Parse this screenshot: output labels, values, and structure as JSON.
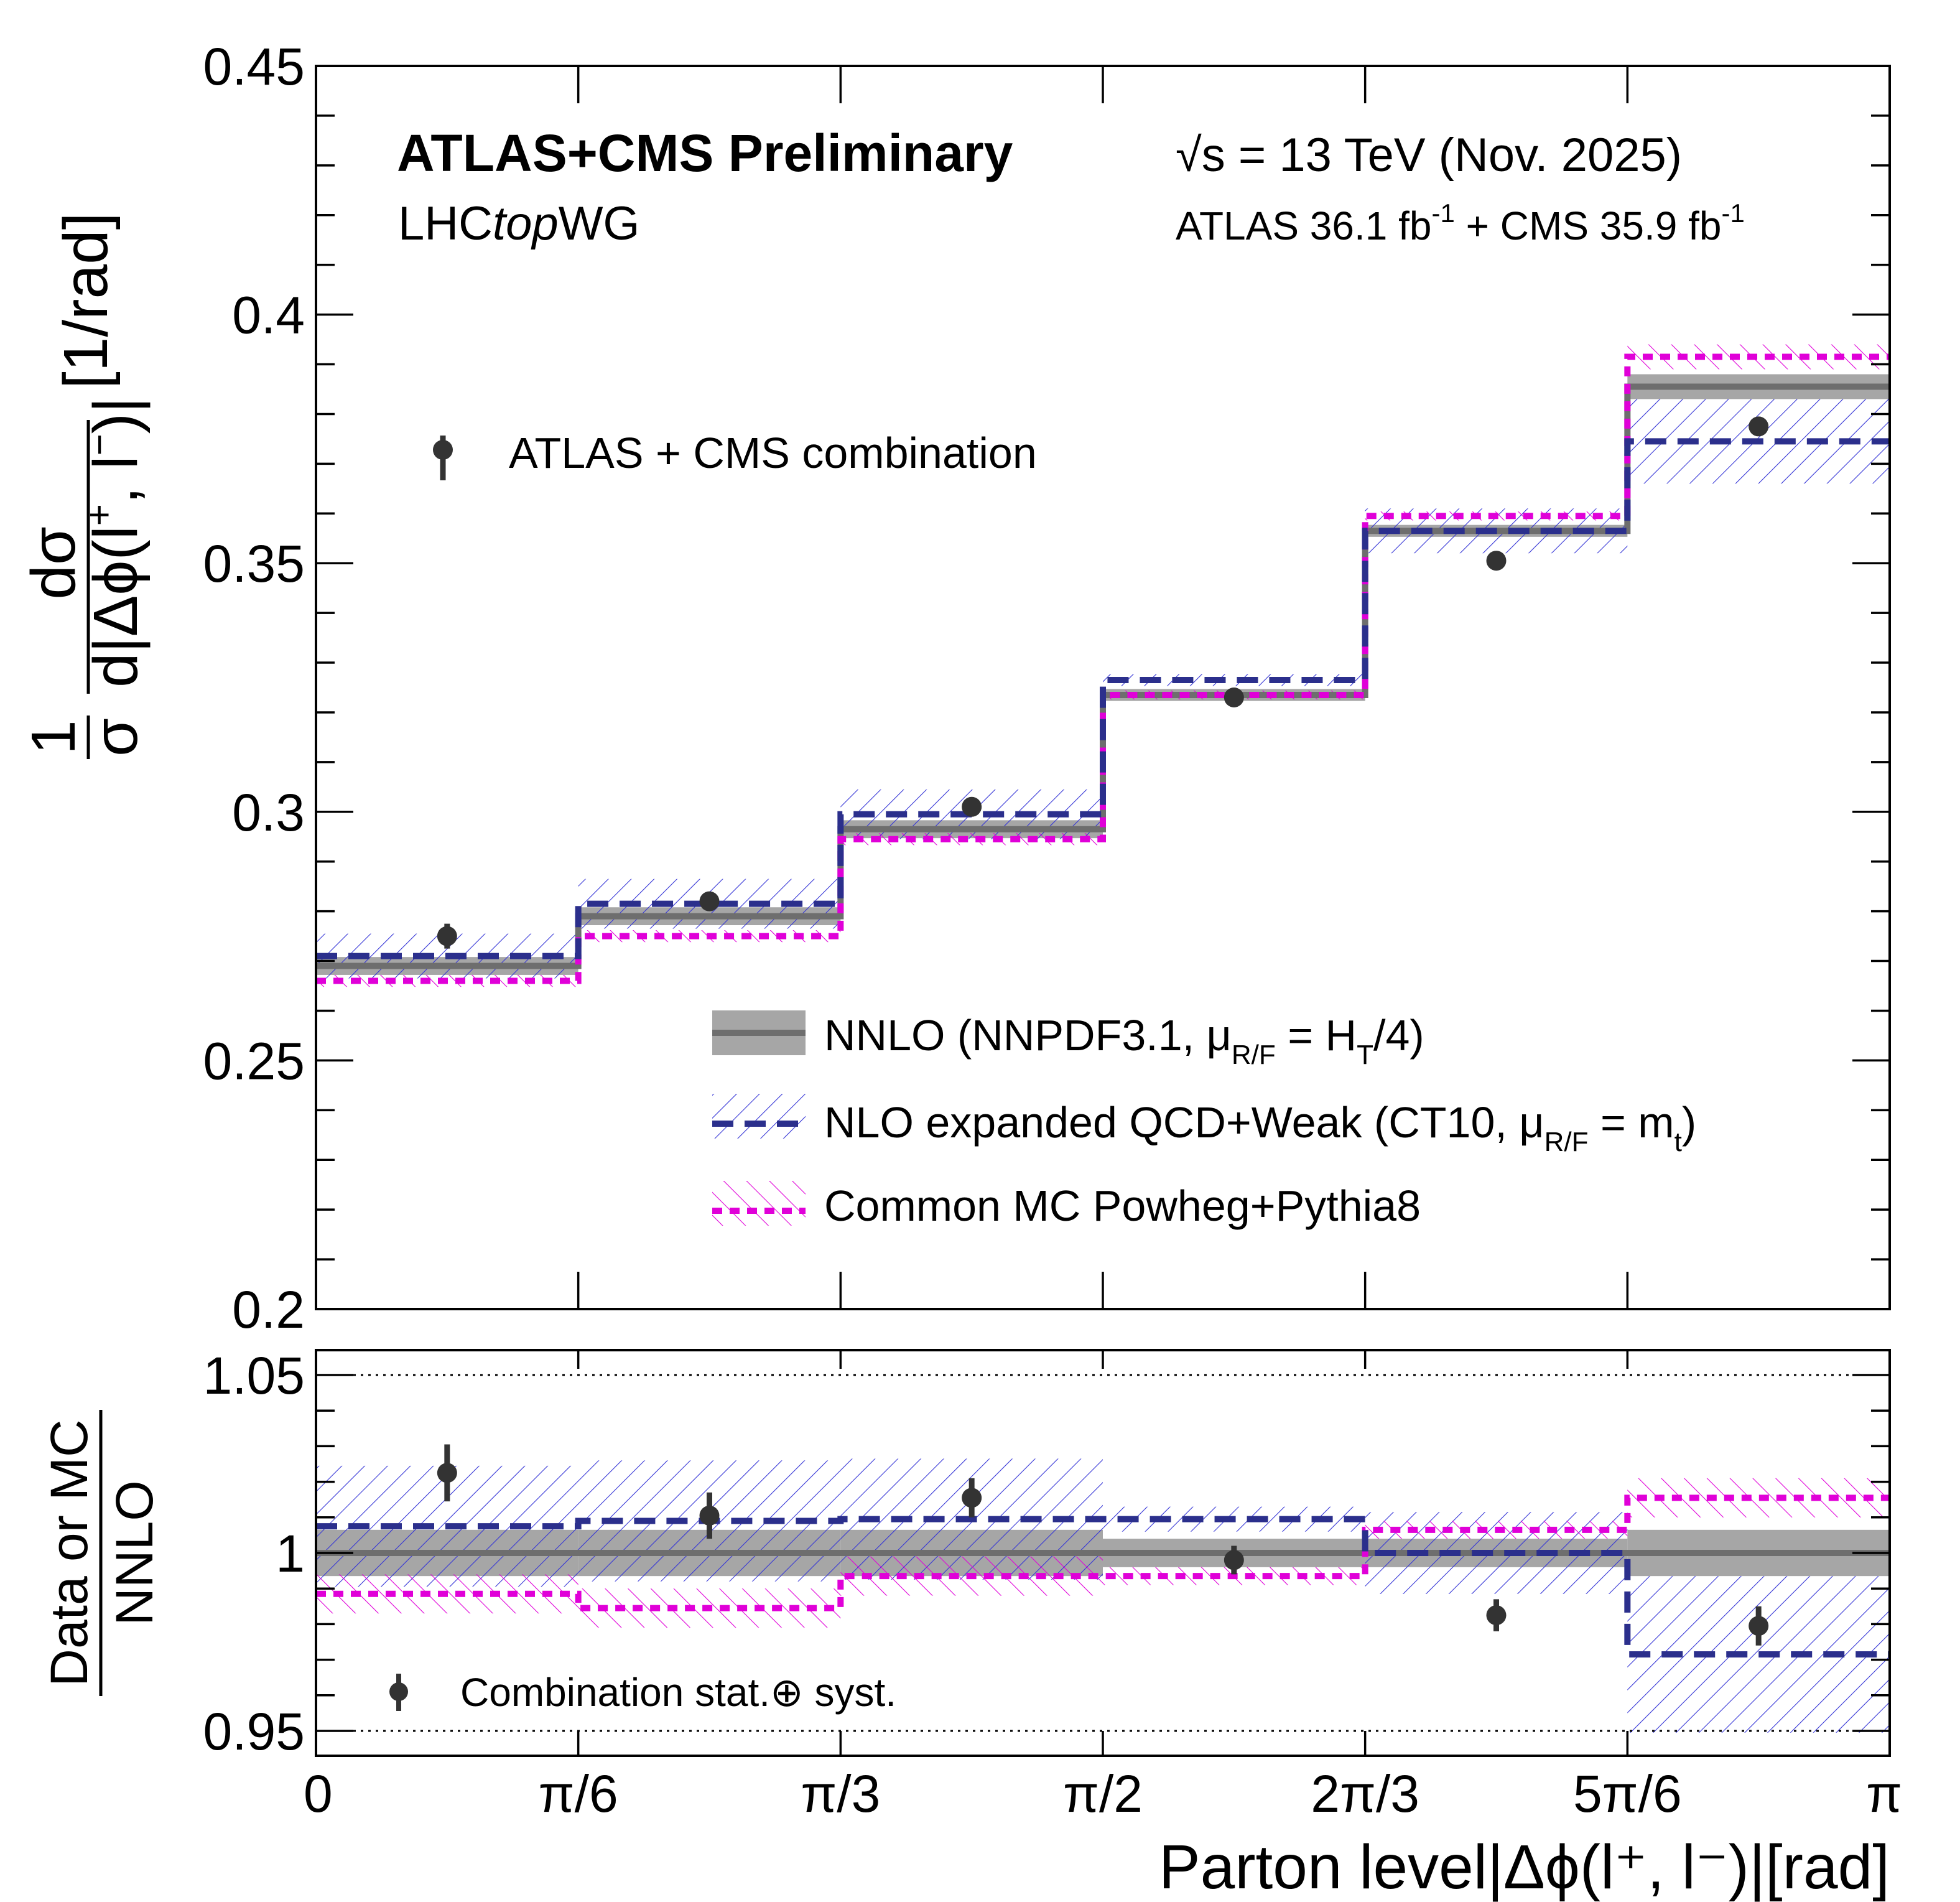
{
  "colors": {
    "data": "#333333",
    "nnlo": "#6e6e6e",
    "nnlo_band": "#a6a6a6",
    "nlo": "#2b2f8c",
    "nlo_hatch": "#3434d6",
    "mc": "#e000d8",
    "mc_hatch": "#e000d8"
  },
  "header": {
    "experiment": "ATLAS+CMS Preliminary",
    "group_prefix": "LHC",
    "group_italic": "top",
    "group_suffix": "WG",
    "energy_sqrt": "√s",
    "energy": " = 13 TeV (Nov. 2025)",
    "lumi_atlas": "ATLAS 36.1 fb",
    "lumi_mid": " + CMS 35.9 fb",
    "lumi_exp": "-1"
  },
  "legend": {
    "data": "ATLAS + CMS combination",
    "nnlo_a": "NNLO (NNPDF3.1, μ",
    "nnlo_sub1": "R/F",
    "nnlo_b": " = H",
    "nnlo_sub2": "T",
    "nnlo_c": "/4)",
    "nlo_a": "NLO expanded QCD+Weak (CT10, μ",
    "nlo_sub1": "R/F",
    "nlo_b": " = m",
    "nlo_sub2": "t",
    "nlo_c": ")",
    "mc": "Common MC Powheg+Pythia8",
    "ratio_data": "Combination stat.⊕ syst."
  },
  "axes": {
    "y_title_main_pre": "[1/rad]",
    "y_title_num": "dσ",
    "y_title_den": "d|Δϕ(l",
    "y_title_frac1": "1",
    "y_title_frac2": "σ",
    "y_ratio_num": "Data or MC",
    "y_ratio_den": "NNLO",
    "x_title": "Parton level|Δϕ(l",
    "x_title_end": "⁺, l⁻)|[rad]"
  },
  "chart_data": [
    {
      "type": "line",
      "panel": "main",
      "title": "ATLAS+CMS Preliminary",
      "xlabel": "Parton level |Δϕ(l⁺, l⁻)| [rad]",
      "ylabel": "1/σ dσ/d|Δϕ(l⁺, l⁻)| [1/rad]",
      "x_edges": [
        0,
        0.5236,
        1.0472,
        1.5708,
        2.0944,
        2.618,
        3.1416
      ],
      "x_tick_labels": [
        "0",
        "π/6",
        "π/3",
        "π/2",
        "2π/3",
        "5π/6",
        "π"
      ],
      "ylim": [
        0.2,
        0.45
      ],
      "y_ticks": [
        "0.2",
        "0.25",
        "0.3",
        "0.35",
        "0.4",
        "0.45"
      ],
      "series": [
        {
          "name": "ATLAS + CMS combination",
          "style": "points",
          "values": [
            0.275,
            0.282,
            0.301,
            0.323,
            0.3505,
            0.3775
          ],
          "errors": [
            0.0025,
            0.0018,
            0.0015,
            0.0015,
            0.0015,
            0.0018
          ]
        },
        {
          "name": "NNLO (NNPDF3.1, μR/F = HT/4)",
          "style": "step",
          "values": [
            0.269,
            0.279,
            0.2965,
            0.3235,
            0.3565,
            0.3855
          ],
          "band": [
            0.0018,
            0.0018,
            0.0018,
            0.0012,
            0.0012,
            0.0025
          ]
        },
        {
          "name": "NLO expanded QCD+Weak (CT10, μR/F = mt)",
          "style": "step",
          "values": [
            0.271,
            0.2815,
            0.2995,
            0.3265,
            0.3565,
            0.3745
          ],
          "band": [
            0.0045,
            0.005,
            0.005,
            0.0012,
            0.0045,
            0.0085
          ]
        },
        {
          "name": "Common MC Powheg+Pythia8",
          "style": "step",
          "values": [
            0.266,
            0.275,
            0.2945,
            0.3235,
            0.3595,
            0.3915
          ],
          "band": [
            0.0012,
            0.0012,
            0.0012,
            0.0009,
            0.0009,
            0.0025
          ]
        }
      ]
    },
    {
      "type": "line",
      "panel": "ratio",
      "ylabel": "Data or MC / NNLO",
      "ylim": [
        0.943,
        1.057
      ],
      "y_ticks": [
        "0.95",
        "1",
        "1.05"
      ],
      "reference_lines": [
        0.95,
        1.05
      ],
      "series": [
        {
          "name": "Combination stat.⊕ syst.",
          "style": "points",
          "values": [
            1.0225,
            1.0105,
            1.0155,
            0.998,
            0.9825,
            0.9795
          ],
          "errors": [
            0.008,
            0.0065,
            0.0055,
            0.004,
            0.0045,
            0.0055
          ]
        },
        {
          "name": "NNLO",
          "style": "step",
          "values": [
            1.0,
            1.0,
            1.0,
            1.0,
            1.0,
            1.0
          ],
          "band": [
            0.0065,
            0.0065,
            0.0065,
            0.004,
            0.004,
            0.0065
          ]
        },
        {
          "name": "NLO expanded QCD+Weak",
          "style": "step",
          "values": [
            1.0075,
            1.009,
            1.0095,
            1.0095,
            1.0,
            0.9715
          ],
          "band": [
            0.017,
            0.017,
            0.017,
            0.0035,
            0.0115,
            0.022
          ]
        },
        {
          "name": "Common MC Powheg+Pythia8",
          "style": "step",
          "values": [
            0.9885,
            0.9845,
            0.9935,
            0.9935,
            1.0065,
            1.0155
          ],
          "band": [
            0.0055,
            0.0055,
            0.0055,
            0.0025,
            0.0025,
            0.0055
          ]
        }
      ]
    }
  ]
}
